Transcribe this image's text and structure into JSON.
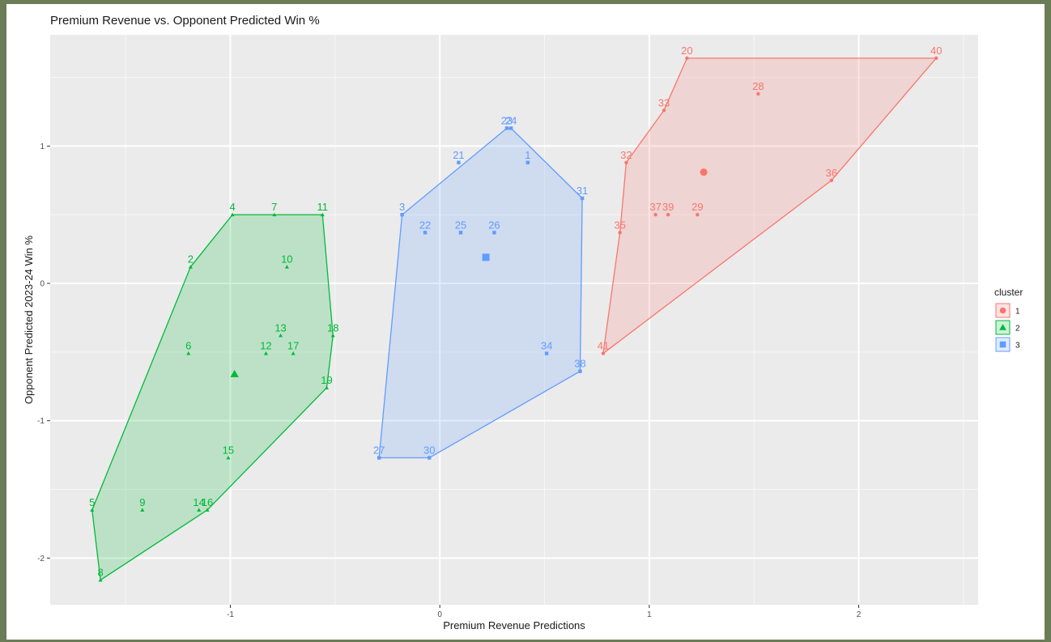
{
  "chart_data": {
    "type": "scatter",
    "title": "Premium Revenue vs. Opponent Predicted Win %",
    "xlabel": "Premium Revenue Predictions",
    "ylabel": "Opponent Predicted 2023-24 Win %",
    "xlim": [
      -1.86,
      2.57
    ],
    "ylim": [
      -2.34,
      1.81
    ],
    "x_ticks": [
      {
        "value": -1,
        "label": "-1"
      },
      {
        "value": 0,
        "label": "0"
      },
      {
        "value": 1,
        "label": "1"
      },
      {
        "value": 2,
        "label": "2"
      }
    ],
    "y_ticks": [
      {
        "value": -2,
        "label": "-2"
      },
      {
        "value": -1,
        "label": "-1"
      },
      {
        "value": 0,
        "label": "0"
      },
      {
        "value": 1,
        "label": "1"
      }
    ],
    "grid": true,
    "legend": {
      "title": "cluster",
      "placement": "right"
    },
    "series": [
      {
        "name": "1",
        "color": "#f8766d",
        "shape": "circle",
        "centroid": {
          "x": 1.26,
          "y": 0.81
        },
        "hull": [
          "41",
          "35",
          "32",
          "33",
          "20",
          "40",
          "36"
        ],
        "points": [
          {
            "label": "20",
            "x": 1.18,
            "y": 1.64
          },
          {
            "label": "40",
            "x": 2.37,
            "y": 1.64
          },
          {
            "label": "28",
            "x": 1.52,
            "y": 1.38
          },
          {
            "label": "33",
            "x": 1.07,
            "y": 1.26
          },
          {
            "label": "32",
            "x": 0.89,
            "y": 0.88
          },
          {
            "label": "36",
            "x": 1.87,
            "y": 0.75
          },
          {
            "label": "37",
            "x": 1.03,
            "y": 0.5
          },
          {
            "label": "39",
            "x": 1.09,
            "y": 0.5
          },
          {
            "label": "29",
            "x": 1.23,
            "y": 0.5
          },
          {
            "label": "35",
            "x": 0.86,
            "y": 0.37
          },
          {
            "label": "41",
            "x": 0.78,
            "y": -0.51
          }
        ]
      },
      {
        "name": "2",
        "color": "#00ba38",
        "shape": "triangle",
        "centroid": {
          "x": -0.98,
          "y": -0.66
        },
        "hull": [
          "8",
          "5",
          "2",
          "4",
          "11",
          "18",
          "19",
          "16"
        ],
        "points": [
          {
            "label": "4",
            "x": -0.99,
            "y": 0.5
          },
          {
            "label": "7",
            "x": -0.79,
            "y": 0.5
          },
          {
            "label": "11",
            "x": -0.56,
            "y": 0.5
          },
          {
            "label": "2",
            "x": -1.19,
            "y": 0.12
          },
          {
            "label": "10",
            "x": -0.73,
            "y": 0.12
          },
          {
            "label": "13",
            "x": -0.76,
            "y": -0.38
          },
          {
            "label": "18",
            "x": -0.51,
            "y": -0.38
          },
          {
            "label": "6",
            "x": -1.2,
            "y": -0.51
          },
          {
            "label": "12",
            "x": -0.83,
            "y": -0.51
          },
          {
            "label": "17",
            "x": -0.7,
            "y": -0.51
          },
          {
            "label": "19",
            "x": -0.54,
            "y": -0.76
          },
          {
            "label": "15",
            "x": -1.01,
            "y": -1.27
          },
          {
            "label": "5",
            "x": -1.66,
            "y": -1.65
          },
          {
            "label": "9",
            "x": -1.42,
            "y": -1.65
          },
          {
            "label": "14",
            "x": -1.15,
            "y": -1.65
          },
          {
            "label": "16",
            "x": -1.11,
            "y": -1.65
          },
          {
            "label": "8",
            "x": -1.62,
            "y": -2.16
          }
        ]
      },
      {
        "name": "3",
        "color": "#619cff",
        "shape": "square",
        "centroid": {
          "x": 0.22,
          "y": 0.19
        },
        "hull": [
          "27",
          "30",
          "38",
          "31",
          "24",
          "23",
          "3"
        ],
        "points": [
          {
            "label": "23",
            "x": 0.32,
            "y": 1.13
          },
          {
            "label": "24",
            "x": 0.34,
            "y": 1.13
          },
          {
            "label": "21",
            "x": 0.09,
            "y": 0.88
          },
          {
            "label": "1",
            "x": 0.42,
            "y": 0.88
          },
          {
            "label": "31",
            "x": 0.68,
            "y": 0.62
          },
          {
            "label": "3",
            "x": -0.18,
            "y": 0.5
          },
          {
            "label": "22",
            "x": -0.07,
            "y": 0.37
          },
          {
            "label": "25",
            "x": 0.1,
            "y": 0.37
          },
          {
            "label": "26",
            "x": 0.26,
            "y": 0.37
          },
          {
            "label": "34",
            "x": 0.51,
            "y": -0.51
          },
          {
            "label": "38",
            "x": 0.67,
            "y": -0.64
          },
          {
            "label": "27",
            "x": -0.29,
            "y": -1.27
          },
          {
            "label": "30",
            "x": -0.05,
            "y": -1.27
          }
        ]
      }
    ]
  }
}
